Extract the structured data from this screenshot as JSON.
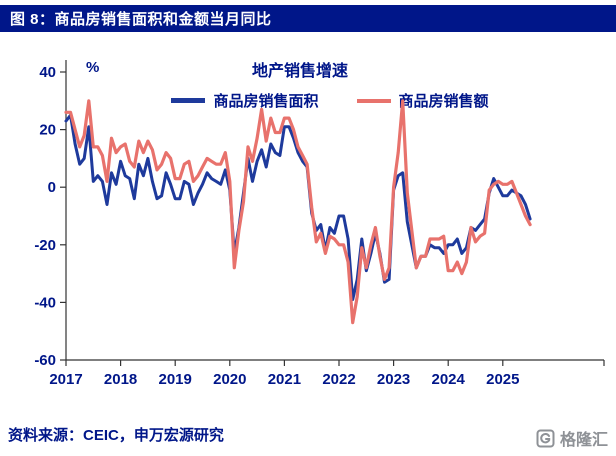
{
  "header": {
    "title": "图 8：商品房销售面积和金额当月同比"
  },
  "footer": {
    "source": "资料来源：CEIC，申万宏源研究",
    "logo_text": "格隆汇"
  },
  "colors": {
    "navy": "#001689",
    "line_blue": "#1E3A9C",
    "line_red": "#E8726C"
  },
  "chart_data": {
    "type": "line",
    "title": "地产销售增速",
    "unit_label": "%",
    "ylim": [
      -60,
      40
    ],
    "yticks": [
      40,
      20,
      0,
      -20,
      -40,
      -60
    ],
    "xticks": [
      2017,
      2018,
      2019,
      2020,
      2021,
      2022,
      2023,
      2024,
      2025
    ],
    "x_start": "2017-01",
    "x_end": "2025-07",
    "x_frequency": "monthly",
    "grid": false,
    "legend_position": "top-center",
    "series": [
      {
        "key": "area",
        "name": "商品房销售面积",
        "color": "#1E3A9C",
        "width": 3,
        "values": [
          23,
          25,
          15,
          8,
          10,
          21,
          2,
          4,
          2,
          -6,
          5,
          1,
          9,
          4,
          3,
          -4,
          8,
          4,
          10,
          2,
          -4,
          -3,
          5,
          1,
          -4,
          -4,
          2,
          1,
          -6,
          -2,
          1,
          5,
          3,
          2,
          1,
          6,
          -1,
          -23,
          -14,
          -2,
          10,
          2,
          9,
          13,
          7,
          15,
          12,
          11,
          21,
          21,
          17,
          12,
          9,
          7,
          -9,
          -15,
          -13,
          -22,
          -14,
          -16,
          -10,
          -10,
          -18,
          -39,
          -32,
          -18,
          -29,
          -23,
          -16,
          -23,
          -33,
          -32,
          -1,
          4,
          5,
          -12,
          -20,
          -28,
          -24,
          -24,
          -20,
          -21,
          -21,
          -23,
          -20,
          -20,
          -18,
          -23,
          -21,
          -14,
          -15,
          -13,
          -11,
          -2,
          3,
          0,
          -3,
          -3,
          -1,
          -2,
          -3,
          -6,
          -11
        ]
      },
      {
        "key": "amount",
        "name": "商品房销售额",
        "color": "#E8726C",
        "width": 3.2,
        "values": [
          26,
          26,
          20,
          14,
          18,
          30,
          14,
          14,
          11,
          2,
          17,
          12,
          14,
          15,
          9,
          7,
          16,
          12,
          16,
          13,
          6,
          8,
          12,
          10,
          3,
          3,
          8,
          9,
          2,
          4,
          7,
          10,
          9,
          8,
          8,
          12,
          2,
          -28,
          -15,
          -5,
          14,
          9,
          17,
          27,
          16,
          24,
          19,
          19,
          24,
          24,
          20,
          14,
          11,
          8,
          -7,
          -19,
          -16,
          -23,
          -17,
          -18,
          -20,
          -20,
          -26,
          -47,
          -38,
          -21,
          -28,
          -20,
          -14,
          -24,
          -32,
          -28,
          0,
          12,
          30,
          -2,
          -15,
          -28,
          -24,
          -24,
          -18,
          -18,
          -18,
          -17,
          -29,
          -29,
          -26,
          -30,
          -26,
          -14,
          -19,
          -17,
          -16,
          -1,
          1,
          2,
          1,
          1,
          2,
          -2,
          -6,
          -10,
          -13
        ]
      }
    ]
  }
}
